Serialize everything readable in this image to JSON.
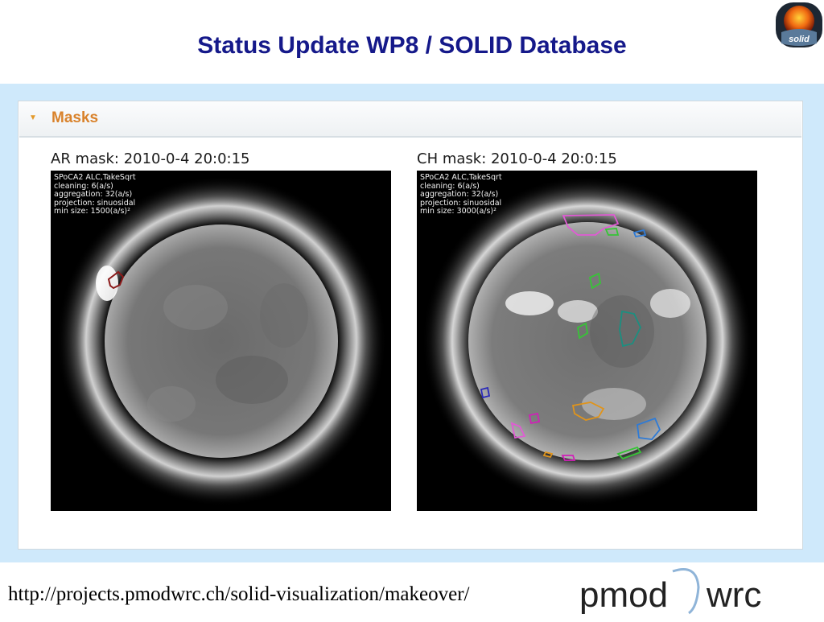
{
  "slide": {
    "title": "Status Update WP8 / SOLID Database",
    "logo_text": "solid",
    "url": "http://projects.pmodwrc.ch/solid-visualization/makeover/",
    "institute_logo": {
      "left": "pmod",
      "right": "wrc"
    }
  },
  "panel": {
    "section_label": "Masks",
    "images": [
      {
        "title": "AR mask: 2010-0-4 20:0:15",
        "meta": [
          "SPoCA2 ALC,TakeSqrt",
          "cleaning: 6(a/s)",
          "aggregation: 32(a/s)",
          "projection: sinuosidal",
          "min size: 1500(a/s)²"
        ]
      },
      {
        "title": "CH mask: 2010-0-4 20:0:15",
        "meta": [
          "SPoCA2 ALC,TakeSqrt",
          "cleaning: 6(a/s)",
          "aggregation: 32(a/s)",
          "projection: sinuosidal",
          "min size: 3000(a/s)²"
        ]
      }
    ]
  },
  "colors": {
    "title": "#15198a",
    "band": "#cfe9fb",
    "section_label": "#d9822b",
    "ar_contour": "#8b1a1a"
  }
}
